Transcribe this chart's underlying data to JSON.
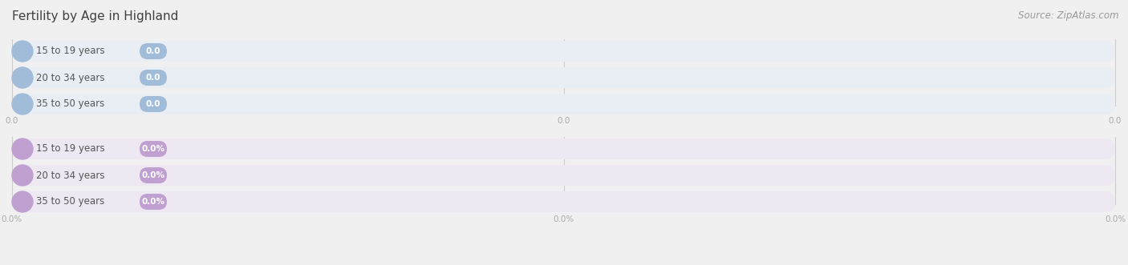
{
  "title": "Fertility by Age in Highland",
  "source_text": "Source: ZipAtlas.com",
  "top_section": {
    "categories": [
      "15 to 19 years",
      "20 to 34 years",
      "35 to 50 years"
    ],
    "values": [
      0.0,
      0.0,
      0.0
    ],
    "bar_bg_color": "#e8eef4",
    "bar_fill_color": "#a0bcd8",
    "label_color": "#555555",
    "value_color": "#ffffff",
    "tick_labels": [
      "0.0",
      "0.0",
      "0.0"
    ]
  },
  "bottom_section": {
    "categories": [
      "15 to 19 years",
      "20 to 34 years",
      "35 to 50 years"
    ],
    "values": [
      0.0,
      0.0,
      0.0
    ],
    "bar_bg_color": "#ede8f2",
    "bar_fill_color": "#c0a0d0",
    "label_color": "#555555",
    "value_color": "#ffffff",
    "tick_labels": [
      "0.0%",
      "0.0%",
      "0.0%"
    ]
  },
  "background_color": "#f0f0f0",
  "title_fontsize": 11,
  "label_fontsize": 8.5,
  "value_fontsize": 7.5,
  "tick_fontsize": 7.5,
  "source_fontsize": 8.5
}
